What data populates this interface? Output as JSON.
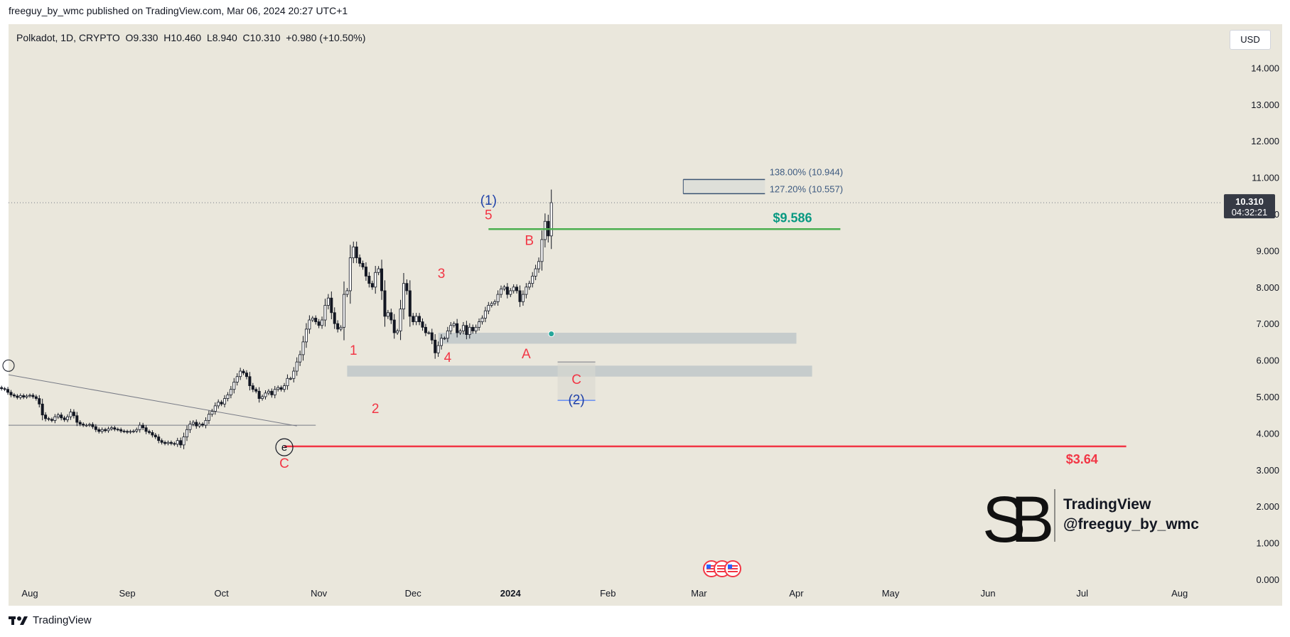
{
  "header": {
    "published": "freeguy_by_wmc published on TradingView.com, Mar 06, 2024 20:27 UTC+1",
    "symbol_line": "Polkadot, 1D, CRYPTO  O9.330  H10.460  L8.940  C10.310  +0.980 (+10.50%)",
    "currency": "USD"
  },
  "footer": {
    "brand": "TradingView"
  },
  "watermark": {
    "line1": "TradingView",
    "line2": "@freeguy_by_wmc"
  },
  "price_badge": {
    "price": "10.310",
    "countdown": "04:32:21"
  },
  "colors": {
    "background": "#eae7dc",
    "red": "#f23645",
    "green": "#4caf50",
    "teal": "#089981",
    "blue": "#2962ff"
  },
  "chart_data": {
    "type": "candlestick",
    "y_ticks": [
      "14.000",
      "13.000",
      "12.000",
      "11.000",
      "10.000",
      "9.000",
      "8.000",
      "7.000",
      "6.000",
      "5.000",
      "4.000",
      "3.000",
      "2.000",
      "1.000",
      "0.000"
    ],
    "ylim": [
      0,
      14.5
    ],
    "x_ticks": [
      "Aug",
      "Sep",
      "Oct",
      "Nov",
      "Dec",
      "2024",
      "Feb",
      "Mar",
      "Apr",
      "May",
      "Jun",
      "Jul",
      "Aug"
    ],
    "last_price": 10.31,
    "levels": [
      {
        "label": "$9.586",
        "value": 9.586,
        "color": "#4caf50"
      },
      {
        "label": "$3.64",
        "value": 3.64,
        "color": "#f23645"
      }
    ],
    "fib_levels": [
      {
        "label": "138.00% (10.944)",
        "value": 10.944
      },
      {
        "label": "127.20% (10.557)",
        "value": 10.557
      }
    ],
    "zones": [
      {
        "low": 6.45,
        "high": 6.75
      },
      {
        "low": 5.55,
        "high": 5.85
      }
    ],
    "wave_labels": [
      {
        "text": "C",
        "date": "2023-10-21",
        "price": 3.05,
        "color": "red"
      },
      {
        "text": "e",
        "date": "2023-10-21",
        "price": 3.5,
        "color": "dark"
      },
      {
        "text": "1",
        "date": "2023-11-12",
        "price": 6.15,
        "color": "red"
      },
      {
        "text": "2",
        "date": "2023-11-19",
        "price": 4.55,
        "color": "red"
      },
      {
        "text": "3",
        "date": "2023-12-10",
        "price": 8.25,
        "color": "red"
      },
      {
        "text": "4",
        "date": "2023-12-12",
        "price": 5.95,
        "color": "red"
      },
      {
        "text": "5",
        "date": "2023-12-25",
        "price": 9.85,
        "color": "red"
      },
      {
        "text": "(1)",
        "date": "2023-12-25",
        "price": 10.25,
        "color": "blue"
      },
      {
        "text": "A",
        "date": "2024-01-06",
        "price": 6.05,
        "color": "red"
      },
      {
        "text": "B",
        "date": "2024-01-07",
        "price": 9.15,
        "color": "red"
      },
      {
        "text": "C",
        "date": "2024-01-22",
        "price": 5.35,
        "color": "red"
      },
      {
        "text": "(2)",
        "date": "2024-01-22",
        "price": 4.8,
        "color": "blue"
      }
    ],
    "series": [
      {
        "name": "DOT/USD",
        "date_start": "2023-07-22",
        "close": [
          5.25,
          5.22,
          5.2,
          5.12,
          5.05,
          5.02,
          4.98,
          5.03,
          4.99,
          5.02,
          5.04,
          5.0,
          4.95,
          4.8,
          4.5,
          4.4,
          4.38,
          4.35,
          4.45,
          4.5,
          4.42,
          4.37,
          4.45,
          4.58,
          4.48,
          4.3,
          4.25,
          4.22,
          4.22,
          4.24,
          4.18,
          4.1,
          4.05,
          4.1,
          4.07,
          4.12,
          4.15,
          4.11,
          4.1,
          4.06,
          4.05,
          4.03,
          4.05,
          4.06,
          4.1,
          4.22,
          4.15,
          4.05,
          4.02,
          3.95,
          3.9,
          3.8,
          3.75,
          3.72,
          3.75,
          3.72,
          3.7,
          3.8,
          3.68,
          3.9,
          4.1,
          4.25,
          4.3,
          4.2,
          4.25,
          4.22,
          4.35,
          4.52,
          4.6,
          4.75,
          4.85,
          4.8,
          4.95,
          5.05,
          5.2,
          5.4,
          5.55,
          5.7,
          5.65,
          5.55,
          5.3,
          5.2,
          5.15,
          4.95,
          5.0,
          5.1,
          5.15,
          5.05,
          5.2,
          5.25,
          5.2,
          5.3,
          5.5,
          5.5,
          5.7,
          5.95,
          6.15,
          6.5,
          6.85,
          7.1,
          7.15,
          7.05,
          6.95,
          7.1,
          7.5,
          7.7,
          7.3,
          7.0,
          6.85,
          6.9,
          7.8,
          7.9,
          8.8,
          9.1,
          8.8,
          8.65,
          8.55,
          8.3,
          8.1,
          8.0,
          8.4,
          8.5,
          7.9,
          7.2,
          7.3,
          7.1,
          6.75,
          6.8,
          7.4,
          8.1,
          7.9,
          7.2,
          7.05,
          7.2,
          7.05,
          6.9,
          6.75,
          6.75,
          6.55,
          6.2,
          6.4,
          6.6,
          6.6,
          6.8,
          6.95,
          7.0,
          6.75,
          6.8,
          6.95,
          6.7,
          6.9,
          6.8,
          6.9,
          7.05,
          7.15,
          7.35,
          7.5,
          7.55,
          7.6,
          7.8,
          7.95,
          8.0,
          7.8,
          7.9,
          8.0,
          7.9,
          7.6,
          7.8,
          8.0,
          8.1,
          8.3,
          8.5,
          8.7,
          9.3,
          9.8,
          9.4,
          10.31
        ]
      }
    ]
  }
}
